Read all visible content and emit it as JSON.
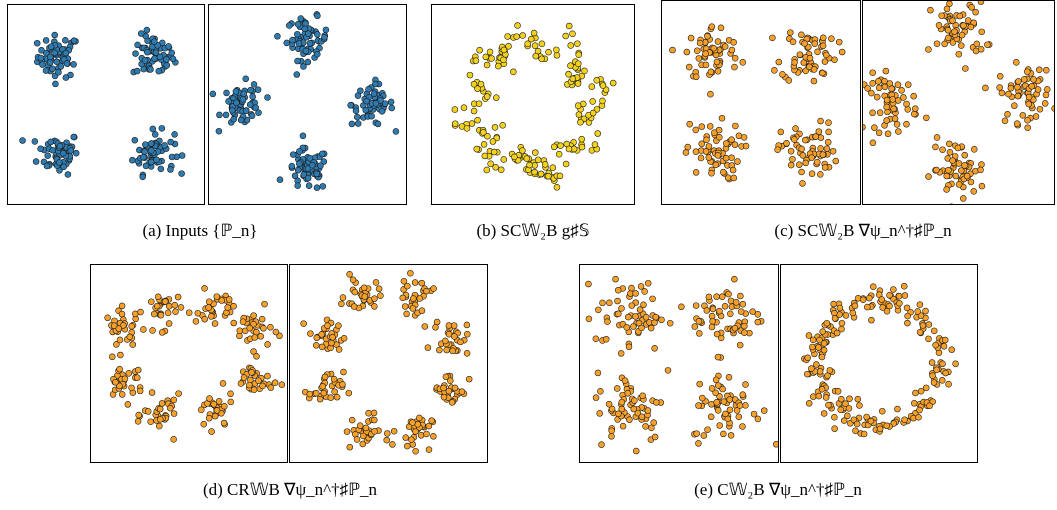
{
  "colors": {
    "blue": "#2f7bb0",
    "yellow": "#f4d21c",
    "orange": "#f7a12a",
    "stroke": "#1a1a1a"
  },
  "captions": {
    "a": "(a) Inputs {ℙ_n}",
    "b": "(b) SC𝕎₂B g♯𝕊",
    "c": "(c) SC𝕎₂B ∇ψ_n^†♯ℙ_n",
    "d": "(d) CR𝕎B ∇ψ_n^†♯ℙ_n",
    "e": "(e) C𝕎₂B ∇ψ_n^†♯ℙ_n"
  },
  "chart_data": [
    {
      "id": "a1",
      "type": "scatter",
      "color": "blue",
      "clusters": [
        [
          -0.55,
          0.55
        ],
        [
          0.55,
          0.55
        ],
        [
          -0.55,
          -0.55
        ],
        [
          0.55,
          -0.55
        ]
      ],
      "spread": 0.12,
      "n": 60
    },
    {
      "id": "a2",
      "type": "scatter",
      "color": "blue",
      "clusters": [
        [
          0,
          0.75
        ],
        [
          0.75,
          0
        ],
        [
          0,
          -0.75
        ],
        [
          -0.75,
          0
        ]
      ],
      "spread": 0.12,
      "n": 60
    },
    {
      "id": "b",
      "type": "scatter",
      "color": "yellow",
      "ring": true,
      "radius": 0.7,
      "arms": 8,
      "n": 200
    },
    {
      "id": "c1",
      "type": "scatter",
      "color": "orange",
      "clusters": [
        [
          -0.55,
          0.55
        ],
        [
          0.55,
          0.55
        ],
        [
          -0.55,
          -0.55
        ],
        [
          0.55,
          -0.55
        ]
      ],
      "spread": 0.16,
      "n": 60
    },
    {
      "id": "c2",
      "type": "scatter",
      "color": "orange",
      "clusters": [
        [
          0,
          0.8
        ],
        [
          0.8,
          0.1
        ],
        [
          0,
          -0.75
        ],
        [
          -0.8,
          0
        ]
      ],
      "spread": 0.16,
      "n": 60
    },
    {
      "id": "d1",
      "type": "scatter",
      "color": "orange",
      "clusters": [
        [
          -0.75,
          0.4
        ],
        [
          -0.3,
          0.62
        ],
        [
          0.3,
          0.62
        ],
        [
          0.75,
          0.4
        ],
        [
          -0.75,
          -0.2
        ],
        [
          -0.3,
          -0.6
        ],
        [
          0.3,
          -0.55
        ],
        [
          0.75,
          -0.2
        ]
      ],
      "spread": 0.11,
      "n": 30
    },
    {
      "id": "d2",
      "type": "scatter",
      "color": "orange",
      "clusters": [
        [
          -0.3,
          0.78
        ],
        [
          0.3,
          0.78
        ],
        [
          0.72,
          0.3
        ],
        [
          0.72,
          -0.3
        ],
        [
          0.3,
          -0.78
        ],
        [
          -0.3,
          -0.78
        ],
        [
          -0.72,
          -0.3
        ],
        [
          -0.72,
          0.3
        ]
      ],
      "spread": 0.1,
      "n": 30
    },
    {
      "id": "e1",
      "type": "scatter",
      "color": "orange",
      "clusters": [
        [
          -0.55,
          0.55
        ],
        [
          0.55,
          0.55
        ],
        [
          -0.55,
          -0.5
        ],
        [
          0.55,
          -0.5
        ]
      ],
      "spread": 0.2,
      "n": 60
    },
    {
      "id": "e2",
      "type": "scatter",
      "color": "orange",
      "ring": true,
      "radius": 0.72,
      "arms": 0,
      "n": 220
    }
  ]
}
